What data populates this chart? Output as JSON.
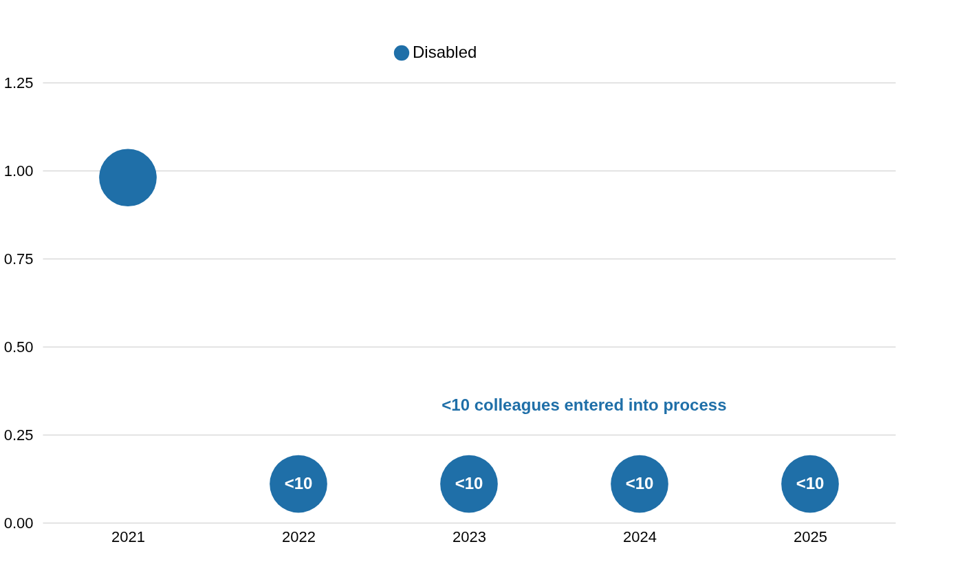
{
  "chart_data": {
    "type": "scatter",
    "categories": [
      "2021",
      "2022",
      "2023",
      "2024",
      "2025"
    ],
    "series": [
      {
        "name": "Disabled",
        "color": "#1f6fa8",
        "values": [
          0.98,
          0.11,
          0.11,
          0.11,
          0.11
        ],
        "value_labels": [
          null,
          "<10",
          "<10",
          "<10",
          "<10"
        ]
      }
    ],
    "ylim": [
      0,
      1.25
    ],
    "yticks": [
      {
        "value": 0,
        "label": "0.00"
      },
      {
        "value": 0.25,
        "label": "0.25"
      },
      {
        "value": 0.5,
        "label": "0.50"
      },
      {
        "value": 0.75,
        "label": "0.75"
      },
      {
        "value": 1,
        "label": "1.00"
      },
      {
        "value": 1.25,
        "label": "1.25"
      }
    ],
    "annotations": [
      "<10 colleagues entered into process"
    ],
    "grid": "y",
    "legend": "top",
    "marker": "circle"
  }
}
